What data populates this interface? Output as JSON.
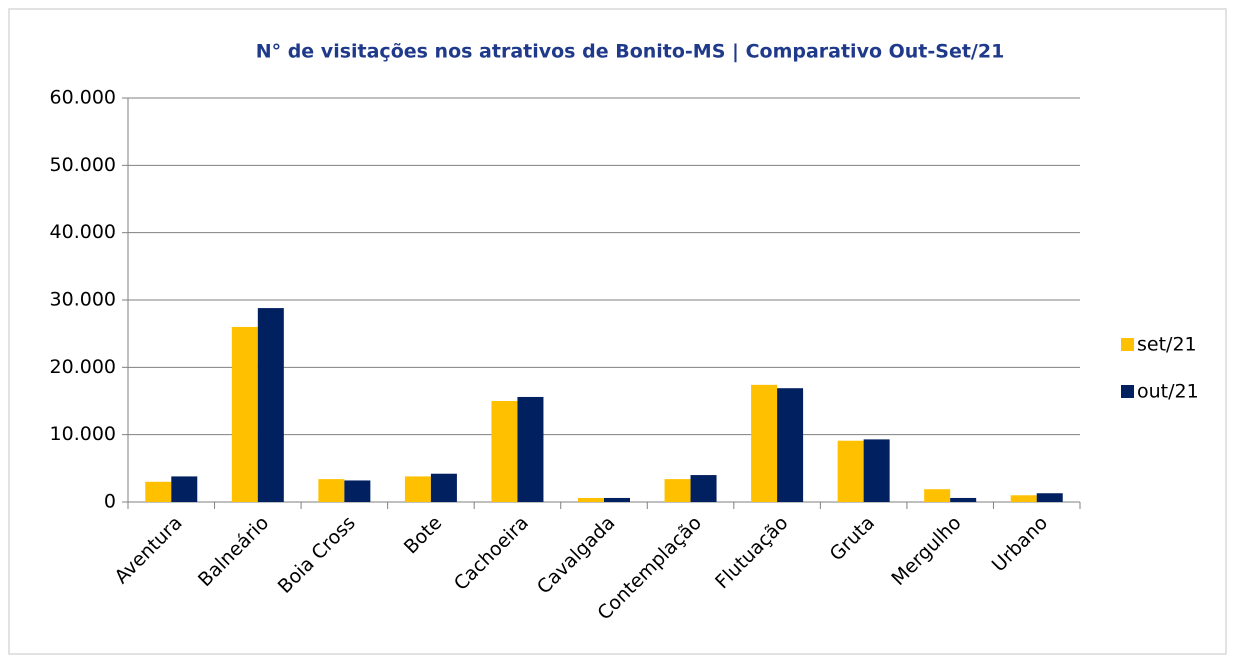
{
  "chart_data": {
    "type": "bar",
    "title": "N° de visitações nos atrativos de Bonito-MS | Comparativo  Out-Set/21",
    "categories": [
      "Aventura",
      "Balneário",
      "Boia Cross",
      "Bote",
      "Cachoeira",
      "Cavalgada",
      "Contemplação",
      "Flutuação",
      "Gruta",
      "Mergulho",
      "Urbano"
    ],
    "series": [
      {
        "name": "set/21",
        "color": "#ffc000",
        "values": [
          3000,
          26000,
          3400,
          3800,
          15000,
          600,
          3400,
          17400,
          9100,
          1900,
          1000
        ]
      },
      {
        "name": "out/21",
        "color": "#002060",
        "values": [
          3800,
          28800,
          3200,
          4200,
          15600,
          600,
          4000,
          16900,
          9300,
          600,
          1300
        ]
      }
    ],
    "ylim": [
      0,
      60000
    ],
    "yticks": [
      0,
      {
        "value": 10000,
        "label": "10.000"
      },
      {
        "value": 20000,
        "label": "20.000"
      },
      {
        "value": 30000,
        "label": "30.000"
      },
      {
        "value": 40000,
        "label": "40.000"
      },
      {
        "value": 50000,
        "label": "50.000"
      },
      {
        "value": 60000,
        "label": "60.000"
      }
    ],
    "grid": true,
    "legend": "right"
  }
}
